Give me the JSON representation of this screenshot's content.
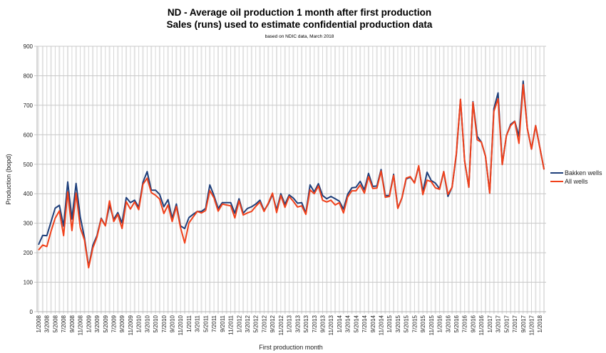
{
  "chart_data": {
    "type": "line",
    "title": "ND - Average oil production 1 month after first production",
    "title_line2": "Sales (runs) used to estimate confidential production data",
    "subtitle": "based on NDIC data, March 2018",
    "xlabel": "First production month",
    "ylabel": "Production (bopd)",
    "ylim": [
      0,
      900
    ],
    "yticks": [
      0,
      100,
      200,
      300,
      400,
      500,
      600,
      700,
      800,
      900
    ],
    "grid": true,
    "legend_position": "right",
    "x_start": "1/2008",
    "x_end": "2/2018",
    "x_tick_labels": [
      "1/2008",
      "3/2008",
      "5/2008",
      "7/2008",
      "9/2008",
      "11/2008",
      "1/2009",
      "3/2009",
      "5/2009",
      "7/2009",
      "9/2009",
      "11/2009",
      "1/2010",
      "3/2010",
      "5/2010",
      "7/2010",
      "9/2010",
      "11/2010",
      "1/2011",
      "3/2011",
      "5/2011",
      "7/2011",
      "9/2011",
      "11/2011",
      "1/2012",
      "3/2012",
      "5/2012",
      "7/2012",
      "9/2012",
      "11/2012",
      "1/2013",
      "3/2013",
      "5/2013",
      "7/2013",
      "9/2013",
      "11/2013",
      "1/2014",
      "3/2014",
      "5/2014",
      "7/2014",
      "9/2014",
      "11/2014",
      "1/2015",
      "3/2015",
      "5/2015",
      "7/2015",
      "9/2015",
      "11/2015",
      "1/2016",
      "3/2016",
      "5/2016",
      "7/2016",
      "9/2016",
      "11/2016",
      "1/2017",
      "3/2017",
      "5/2017",
      "7/2017",
      "9/2017",
      "11/2017",
      "1/2018"
    ],
    "series": [
      {
        "name": "Bakken wells",
        "color": "#1f3f7a",
        "values": [
          227,
          259,
          258,
          305,
          351,
          361,
          290,
          440,
          314,
          435,
          321,
          251,
          152,
          225,
          258,
          317,
          292,
          362,
          313,
          336,
          301,
          387,
          370,
          378,
          354,
          439,
          475,
          412,
          412,
          398,
          356,
          380,
          316,
          365,
          291,
          282,
          319,
          330,
          340,
          340,
          350,
          430,
          394,
          350,
          370,
          370,
          370,
          334,
          383,
          334,
          350,
          356,
          365,
          378,
          343,
          365,
          398,
          345,
          400,
          364,
          396,
          385,
          368,
          370,
          334,
          430,
          406,
          434,
          394,
          383,
          391,
          383,
          375,
          348,
          398,
          420,
          422,
          442,
          413,
          469,
          425,
          426,
          482,
          394,
          394,
          466,
          351,
          386,
          450,
          456,
          438,
          493,
          406,
          473,
          445,
          436,
          417,
          475,
          391,
          422,
          530,
          720,
          511,
          422,
          712,
          595,
          575,
          527,
          402,
          688,
          742,
          500,
          597,
          635,
          646,
          595,
          782,
          622,
          551,
          631,
          557,
          482
        ]
      },
      {
        "name": "All wells",
        "color": "#f0401a",
        "values": [
          209,
          226,
          221,
          273,
          317,
          342,
          258,
          406,
          275,
          402,
          285,
          243,
          149,
          216,
          253,
          315,
          291,
          376,
          306,
          330,
          282,
          373,
          348,
          372,
          346,
          432,
          453,
          404,
          395,
          382,
          333,
          362,
          306,
          357,
          285,
          233,
          301,
          321,
          340,
          335,
          343,
          411,
          386,
          341,
          365,
          362,
          359,
          318,
          376,
          328,
          335,
          340,
          357,
          372,
          340,
          368,
          402,
          336,
          394,
          354,
          391,
          374,
          355,
          359,
          330,
          413,
          400,
          426,
          378,
          372,
          378,
          362,
          370,
          335,
          389,
          410,
          410,
          430,
          402,
          458,
          418,
          419,
          477,
          388,
          391,
          462,
          350,
          386,
          453,
          458,
          436,
          495,
          397,
          446,
          441,
          420,
          415,
          475,
          398,
          422,
          535,
          720,
          511,
          422,
          710,
          583,
          575,
          527,
          402,
          679,
          722,
          499,
          597,
          631,
          645,
          571,
          770,
          622,
          551,
          631,
          556,
          482
        ]
      }
    ]
  }
}
